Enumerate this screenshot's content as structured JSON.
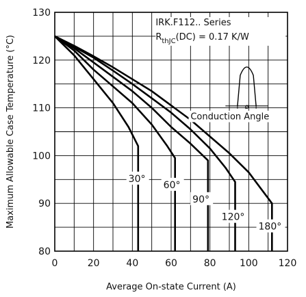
{
  "chart_data": {
    "type": "line",
    "xlabel": "Average On-state Current (A)",
    "ylabel": "Maximum Allowable Case Temperature (°C)",
    "xlim": [
      0,
      120
    ],
    "ylim": [
      80,
      130
    ],
    "xticks": [
      0,
      20,
      40,
      60,
      80,
      100,
      120
    ],
    "yticks": [
      80,
      90,
      100,
      110,
      120,
      130
    ],
    "x_minor_step": 10,
    "y_minor_step": 5,
    "grid": true,
    "annotation": {
      "series_name": "IRK.F112.. Series",
      "r_main": "R",
      "r_sub": "thJC",
      "r_rest": "(DC) = 0.17 K/W",
      "conduction_label": "Conduction Angle",
      "phi_symbol": "ø"
    },
    "series": [
      {
        "name": "30°",
        "x": [
          0,
          10,
          20,
          30,
          38,
          43,
          43
        ],
        "y": [
          125,
          121,
          116,
          111,
          106,
          102,
          80
        ]
      },
      {
        "name": "60°",
        "x": [
          0,
          10,
          20,
          30,
          40,
          50,
          58,
          62,
          62
        ],
        "y": [
          125,
          122,
          118,
          114.5,
          111,
          106.5,
          102,
          99.5,
          80
        ]
      },
      {
        "name": "90°",
        "x": [
          0,
          10,
          20,
          30,
          40,
          50,
          60,
          70,
          79,
          79
        ],
        "y": [
          125,
          122.5,
          119.5,
          116.5,
          113.5,
          110,
          106,
          102.5,
          99,
          80
        ]
      },
      {
        "name": "120°",
        "x": [
          0,
          10,
          20,
          30,
          40,
          50,
          60,
          70,
          80,
          88,
          93,
          93
        ],
        "y": [
          125,
          122.8,
          120.5,
          117.8,
          115,
          112,
          109,
          105.5,
          101.5,
          97.5,
          94.5,
          80
        ]
      },
      {
        "name": "180°",
        "x": [
          0,
          10,
          20,
          30,
          40,
          50,
          60,
          70,
          80,
          90,
          100,
          112,
          112
        ],
        "y": [
          125,
          123,
          120.8,
          118.5,
          116,
          113.5,
          110.5,
          107.5,
          104,
          100.5,
          96.5,
          90,
          80
        ]
      }
    ]
  }
}
